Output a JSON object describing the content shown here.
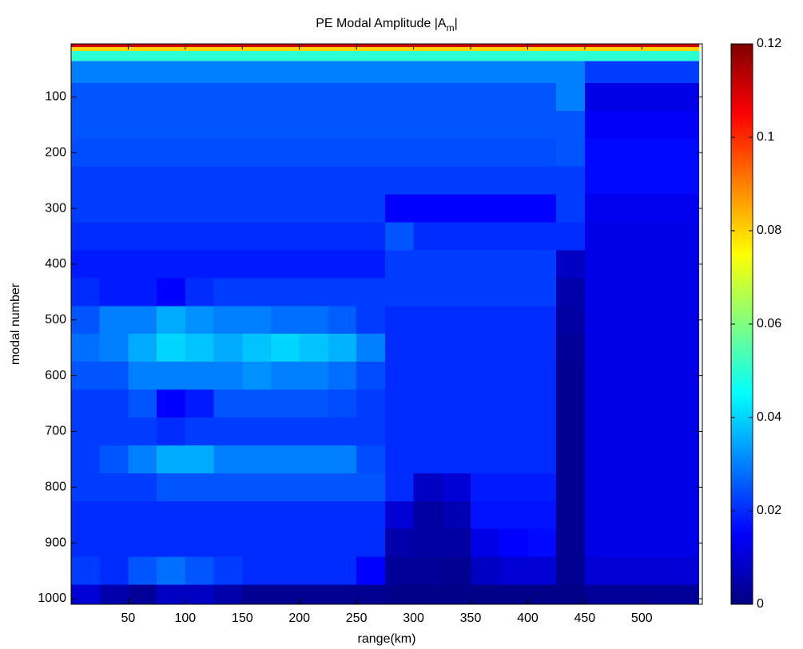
{
  "chart_data": {
    "type": "heatmap",
    "title": [
      "PE Modal Amplitude |A",
      "m",
      "|"
    ],
    "x_label": "range(km)",
    "y_label": "modal number",
    "xlim": [
      0,
      553
    ],
    "ylim": [
      5,
      1010
    ],
    "y_reversed": true,
    "xticks": [
      50,
      100,
      150,
      200,
      250,
      300,
      350,
      400,
      450,
      500
    ],
    "yticks": [
      100,
      200,
      300,
      400,
      500,
      600,
      700,
      800,
      900,
      1000
    ],
    "colormap": "jet",
    "clim": [
      0,
      0.12
    ],
    "colorbar_ticks": [
      0,
      0.02,
      0.04,
      0.06,
      0.08,
      0.1,
      0.12
    ],
    "x": [
      12.5,
      37.5,
      62.5,
      87.5,
      112.5,
      137.5,
      162.5,
      187.5,
      212.5,
      237.5,
      262.5,
      287.5,
      312.5,
      337.5,
      362.5,
      387.5,
      412.5,
      437.5,
      462.5,
      487.5,
      512.5,
      537.5
    ],
    "y": [
      8,
      14,
      22,
      50,
      100,
      150,
      200,
      250,
      300,
      350,
      400,
      450,
      500,
      550,
      600,
      650,
      700,
      750,
      800,
      850,
      900,
      950,
      1000
    ],
    "z": [
      [
        0.11,
        0.11,
        0.11,
        0.11,
        0.11,
        0.11,
        0.11,
        0.11,
        0.11,
        0.11,
        0.11,
        0.11,
        0.11,
        0.11,
        0.11,
        0.11,
        0.11,
        0.11,
        0.11,
        0.11,
        0.11,
        0.11
      ],
      [
        0.08,
        0.08,
        0.08,
        0.08,
        0.08,
        0.08,
        0.08,
        0.08,
        0.08,
        0.08,
        0.08,
        0.08,
        0.08,
        0.08,
        0.08,
        0.08,
        0.08,
        0.08,
        0.08,
        0.08,
        0.08,
        0.08
      ],
      [
        0.05,
        0.05,
        0.05,
        0.05,
        0.05,
        0.05,
        0.05,
        0.05,
        0.05,
        0.05,
        0.05,
        0.05,
        0.05,
        0.05,
        0.05,
        0.05,
        0.05,
        0.05,
        0.05,
        0.05,
        0.05,
        0.05
      ],
      [
        0.03,
        0.03,
        0.03,
        0.03,
        0.03,
        0.03,
        0.03,
        0.03,
        0.03,
        0.03,
        0.03,
        0.03,
        0.03,
        0.03,
        0.03,
        0.03,
        0.03,
        0.03,
        0.022,
        0.022,
        0.022,
        0.022
      ],
      [
        0.025,
        0.025,
        0.025,
        0.025,
        0.025,
        0.025,
        0.025,
        0.025,
        0.025,
        0.025,
        0.025,
        0.025,
        0.025,
        0.025,
        0.025,
        0.025,
        0.025,
        0.03,
        0.012,
        0.012,
        0.012,
        0.012
      ],
      [
        0.025,
        0.025,
        0.025,
        0.025,
        0.025,
        0.025,
        0.025,
        0.025,
        0.025,
        0.025,
        0.025,
        0.025,
        0.025,
        0.025,
        0.025,
        0.025,
        0.025,
        0.025,
        0.014,
        0.014,
        0.014,
        0.014
      ],
      [
        0.024,
        0.024,
        0.024,
        0.024,
        0.024,
        0.024,
        0.024,
        0.024,
        0.024,
        0.024,
        0.024,
        0.024,
        0.024,
        0.024,
        0.024,
        0.024,
        0.024,
        0.025,
        0.016,
        0.016,
        0.016,
        0.016
      ],
      [
        0.022,
        0.022,
        0.022,
        0.022,
        0.022,
        0.022,
        0.022,
        0.022,
        0.022,
        0.022,
        0.022,
        0.022,
        0.022,
        0.022,
        0.022,
        0.022,
        0.022,
        0.022,
        0.016,
        0.016,
        0.016,
        0.016
      ],
      [
        0.022,
        0.022,
        0.022,
        0.022,
        0.022,
        0.022,
        0.022,
        0.022,
        0.022,
        0.022,
        0.022,
        0.015,
        0.015,
        0.015,
        0.015,
        0.015,
        0.015,
        0.022,
        0.013,
        0.013,
        0.013,
        0.013
      ],
      [
        0.02,
        0.02,
        0.02,
        0.02,
        0.02,
        0.02,
        0.02,
        0.02,
        0.02,
        0.02,
        0.02,
        0.025,
        0.02,
        0.02,
        0.02,
        0.02,
        0.02,
        0.02,
        0.012,
        0.012,
        0.012,
        0.012
      ],
      [
        0.018,
        0.018,
        0.018,
        0.018,
        0.018,
        0.018,
        0.018,
        0.018,
        0.018,
        0.018,
        0.018,
        0.022,
        0.022,
        0.022,
        0.022,
        0.022,
        0.022,
        0.008,
        0.012,
        0.012,
        0.012,
        0.012
      ],
      [
        0.02,
        0.018,
        0.018,
        0.015,
        0.02,
        0.022,
        0.022,
        0.022,
        0.022,
        0.022,
        0.022,
        0.022,
        0.022,
        0.022,
        0.022,
        0.022,
        0.022,
        0.005,
        0.012,
        0.012,
        0.012,
        0.012
      ],
      [
        0.025,
        0.03,
        0.03,
        0.035,
        0.032,
        0.03,
        0.03,
        0.028,
        0.028,
        0.026,
        0.022,
        0.02,
        0.02,
        0.02,
        0.02,
        0.02,
        0.02,
        0.004,
        0.012,
        0.012,
        0.012,
        0.012
      ],
      [
        0.028,
        0.03,
        0.035,
        0.04,
        0.038,
        0.035,
        0.038,
        0.04,
        0.038,
        0.036,
        0.03,
        0.02,
        0.02,
        0.02,
        0.02,
        0.02,
        0.02,
        0.003,
        0.012,
        0.012,
        0.012,
        0.012
      ],
      [
        0.025,
        0.025,
        0.03,
        0.03,
        0.03,
        0.03,
        0.032,
        0.03,
        0.03,
        0.028,
        0.024,
        0.02,
        0.02,
        0.02,
        0.02,
        0.02,
        0.02,
        0.002,
        0.012,
        0.012,
        0.012,
        0.012
      ],
      [
        0.022,
        0.022,
        0.025,
        0.015,
        0.018,
        0.025,
        0.025,
        0.025,
        0.025,
        0.024,
        0.022,
        0.02,
        0.02,
        0.02,
        0.02,
        0.02,
        0.02,
        0.002,
        0.012,
        0.012,
        0.012,
        0.012
      ],
      [
        0.022,
        0.022,
        0.022,
        0.02,
        0.022,
        0.022,
        0.022,
        0.022,
        0.022,
        0.022,
        0.022,
        0.02,
        0.02,
        0.02,
        0.02,
        0.02,
        0.02,
        0.002,
        0.012,
        0.012,
        0.012,
        0.012
      ],
      [
        0.022,
        0.025,
        0.03,
        0.035,
        0.035,
        0.03,
        0.03,
        0.03,
        0.03,
        0.03,
        0.024,
        0.02,
        0.02,
        0.02,
        0.02,
        0.02,
        0.02,
        0.002,
        0.012,
        0.012,
        0.012,
        0.012
      ],
      [
        0.022,
        0.022,
        0.022,
        0.025,
        0.025,
        0.025,
        0.025,
        0.025,
        0.025,
        0.025,
        0.025,
        0.02,
        0.008,
        0.01,
        0.018,
        0.018,
        0.018,
        0.002,
        0.012,
        0.012,
        0.012,
        0.012
      ],
      [
        0.02,
        0.02,
        0.02,
        0.02,
        0.02,
        0.02,
        0.02,
        0.02,
        0.02,
        0.02,
        0.02,
        0.01,
        0.004,
        0.006,
        0.017,
        0.017,
        0.017,
        0.002,
        0.012,
        0.012,
        0.012,
        0.012
      ],
      [
        0.02,
        0.02,
        0.02,
        0.02,
        0.02,
        0.02,
        0.02,
        0.02,
        0.02,
        0.02,
        0.02,
        0.005,
        0.004,
        0.004,
        0.012,
        0.015,
        0.016,
        0.002,
        0.012,
        0.012,
        0.012,
        0.012
      ],
      [
        0.022,
        0.02,
        0.025,
        0.028,
        0.025,
        0.022,
        0.02,
        0.02,
        0.02,
        0.02,
        0.015,
        0.003,
        0.003,
        0.002,
        0.008,
        0.01,
        0.01,
        0.002,
        0.01,
        0.01,
        0.01,
        0.01
      ],
      [
        0.01,
        0.005,
        0.003,
        0.008,
        0.008,
        0.005,
        0.002,
        0.002,
        0.002,
        0.002,
        0.002,
        0.001,
        0.001,
        0.001,
        0.001,
        0.001,
        0.001,
        0.001,
        0.003,
        0.003,
        0.003,
        0.003
      ]
    ]
  }
}
